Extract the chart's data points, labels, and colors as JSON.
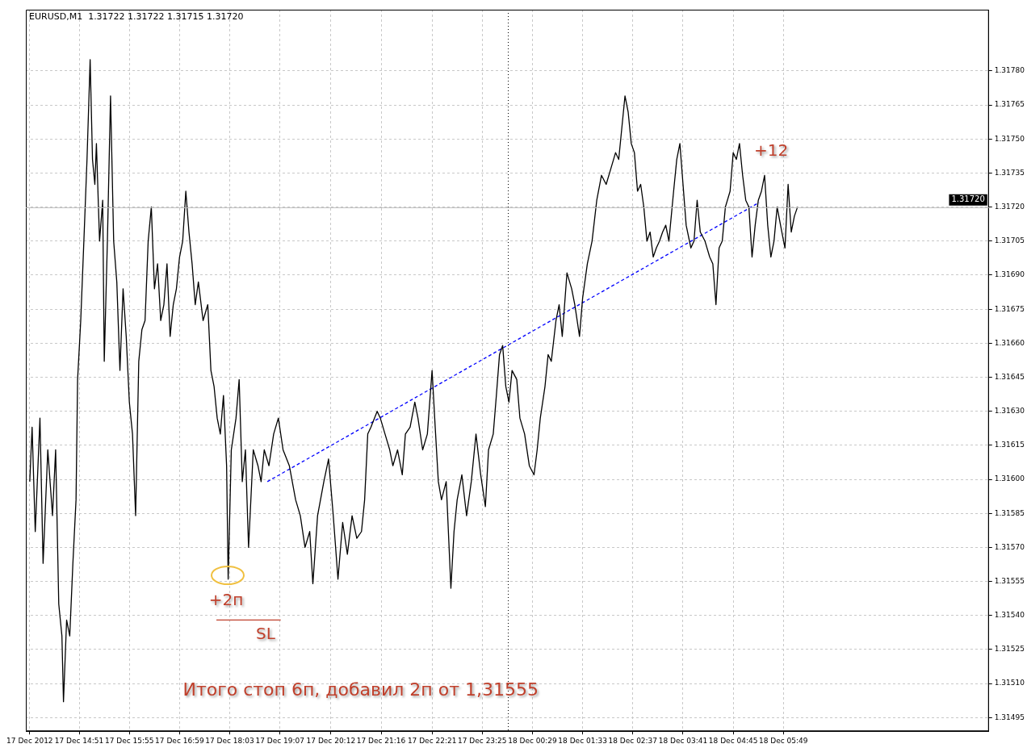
{
  "chart_data": {
    "type": "line",
    "title": "EURUSD,M1  1.31722 1.31722 1.31715 1.31720",
    "xlim": [
      "2012-12-17T13:43",
      "2012-12-18T10:11"
    ],
    "xticks": [
      {
        "value": "2012-12-17T13:48",
        "label": "17 Dec 2012"
      },
      {
        "value": "2012-12-17T14:51",
        "label": "17 Dec 14:51"
      },
      {
        "value": "2012-12-17T15:55",
        "label": "17 Dec 15:55"
      },
      {
        "value": "2012-12-17T16:59",
        "label": "17 Dec 16:59"
      },
      {
        "value": "2012-12-17T18:03",
        "label": "17 Dec 18:03"
      },
      {
        "value": "2012-12-17T19:07",
        "label": "17 Dec 19:07"
      },
      {
        "value": "2012-12-17T20:12",
        "label": "17 Dec 20:12"
      },
      {
        "value": "2012-12-17T21:16",
        "label": "17 Dec 21:16"
      },
      {
        "value": "2012-12-17T22:21",
        "label": "17 Dec 22:21"
      },
      {
        "value": "2012-12-17T23:25",
        "label": "17 Dec 23:25"
      },
      {
        "value": "2012-12-18T00:29",
        "label": "18 Dec 00:29"
      },
      {
        "value": "2012-12-18T01:33",
        "label": "18 Dec 01:33"
      },
      {
        "value": "2012-12-18T02:37",
        "label": "18 Dec 02:37"
      },
      {
        "value": "2012-12-18T03:41",
        "label": "18 Dec 03:41"
      },
      {
        "value": "2012-12-18T04:45",
        "label": "18 Dec 04:45"
      },
      {
        "value": "2012-12-18T05:49",
        "label": "18 Dec 05:49"
      }
    ],
    "ylim": [
      1.31489,
      1.31807
    ],
    "yticks": [
      1.31495,
      {
        "value": 1.3151,
        "label": "1.31510"
      },
      1.31525,
      {
        "value": 1.3154,
        "label": "1.31540"
      },
      1.31555,
      {
        "value": 1.3157,
        "label": "1.31570"
      },
      1.31585,
      {
        "value": 1.316,
        "label": "1.31600"
      },
      1.31615,
      {
        "value": 1.3163,
        "label": "1.31630"
      },
      1.31645,
      {
        "value": 1.3166,
        "label": "1.31660"
      },
      1.31675,
      {
        "value": 1.3169,
        "label": "1.31690"
      },
      1.31705,
      {
        "value": 1.3172,
        "label": "1.31720"
      },
      1.31735,
      {
        "value": 1.3175,
        "label": "1.31750"
      },
      1.31765,
      {
        "value": 1.3178,
        "label": "1.31780"
      }
    ],
    "grid": true,
    "legend": false,
    "marker": "none",
    "series": [
      {
        "color": "#000000",
        "line_style": "solid",
        "x": [
          "2012-12-17T13:48",
          "2012-12-17T13:51",
          "2012-12-17T13:55",
          "2012-12-17T14:01",
          "2012-12-17T14:05",
          "2012-12-17T14:11",
          "2012-12-17T14:17",
          "2012-12-17T14:21",
          "2012-12-17T14:25",
          "2012-12-17T14:29",
          "2012-12-17T14:31",
          "2012-12-17T14:35",
          "2012-12-17T14:39",
          "2012-12-17T14:43",
          "2012-12-17T14:47",
          "2012-12-17T14:49",
          "2012-12-17T14:53",
          "2012-12-17T14:57",
          "2012-12-17T15:01",
          "2012-12-17T15:05",
          "2012-12-17T15:08",
          "2012-12-17T15:11",
          "2012-12-17T15:13",
          "2012-12-17T15:17",
          "2012-12-17T15:21",
          "2012-12-17T15:23",
          "2012-12-17T15:27",
          "2012-12-17T15:31",
          "2012-12-17T15:35",
          "2012-12-17T15:39",
          "2012-12-17T15:43",
          "2012-12-17T15:47",
          "2012-12-17T15:51",
          "2012-12-17T15:55",
          "2012-12-17T15:59",
          "2012-12-17T16:03",
          "2012-12-17T16:07",
          "2012-12-17T16:11",
          "2012-12-17T16:15",
          "2012-12-17T16:19",
          "2012-12-17T16:23",
          "2012-12-17T16:27",
          "2012-12-17T16:31",
          "2012-12-17T16:35",
          "2012-12-17T16:39",
          "2012-12-17T16:43",
          "2012-12-17T16:47",
          "2012-12-17T16:51",
          "2012-12-17T16:55",
          "2012-12-17T16:59",
          "2012-12-17T17:03",
          "2012-12-17T17:07",
          "2012-12-17T17:11",
          "2012-12-17T17:15",
          "2012-12-17T17:19",
          "2012-12-17T17:23",
          "2012-12-17T17:29",
          "2012-12-17T17:35",
          "2012-12-17T17:39",
          "2012-12-17T17:43",
          "2012-12-17T17:47",
          "2012-12-17T17:51",
          "2012-12-17T17:55",
          "2012-12-17T17:59",
          "2012-12-17T18:01",
          "2012-12-17T18:05",
          "2012-12-17T18:11",
          "2012-12-17T18:15",
          "2012-12-17T18:19",
          "2012-12-17T18:23",
          "2012-12-17T18:27",
          "2012-12-17T18:33",
          "2012-12-17T18:39",
          "2012-12-17T18:43",
          "2012-12-17T18:47",
          "2012-12-17T18:53",
          "2012-12-17T18:59",
          "2012-12-17T19:05",
          "2012-12-17T19:11",
          "2012-12-17T19:19",
          "2012-12-17T19:27",
          "2012-12-17T19:33",
          "2012-12-17T19:39",
          "2012-12-17T19:45",
          "2012-12-17T19:49",
          "2012-12-17T19:55",
          "2012-12-17T20:03",
          "2012-12-17T20:09",
          "2012-12-17T20:15",
          "2012-12-17T20:21",
          "2012-12-17T20:27",
          "2012-12-17T20:33",
          "2012-12-17T20:39",
          "2012-12-17T20:45",
          "2012-12-17T20:51",
          "2012-12-17T20:55",
          "2012-12-17T20:59",
          "2012-12-17T21:03",
          "2012-12-17T21:11",
          "2012-12-17T21:15",
          "2012-12-17T21:21",
          "2012-12-17T21:27",
          "2012-12-17T21:31",
          "2012-12-17T21:37",
          "2012-12-17T21:43",
          "2012-12-17T21:47",
          "2012-12-17T21:53",
          "2012-12-17T21:59",
          "2012-12-17T22:03",
          "2012-12-17T22:09",
          "2012-12-17T22:15",
          "2012-12-17T22:21",
          "2012-12-17T22:25",
          "2012-12-17T22:29",
          "2012-12-17T22:33",
          "2012-12-17T22:39",
          "2012-12-17T22:45",
          "2012-12-17T22:49",
          "2012-12-17T22:53",
          "2012-12-17T22:59",
          "2012-12-17T23:05",
          "2012-12-17T23:11",
          "2012-12-17T23:17",
          "2012-12-17T23:23",
          "2012-12-17T23:29",
          "2012-12-17T23:33",
          "2012-12-17T23:39",
          "2012-12-17T23:43",
          "2012-12-17T23:47",
          "2012-12-17T23:51",
          "2012-12-17T23:55",
          "2012-12-17T23:59",
          "2012-12-18T00:03",
          "2012-12-18T00:09",
          "2012-12-18T00:13",
          "2012-12-18T00:19",
          "2012-12-18T00:25",
          "2012-12-18T00:31",
          "2012-12-18T00:35",
          "2012-12-18T00:39",
          "2012-12-18T00:45",
          "2012-12-18T00:49",
          "2012-12-18T00:53",
          "2012-12-18T00:59",
          "2012-12-18T01:03",
          "2012-12-18T01:07",
          "2012-12-18T01:13",
          "2012-12-18T01:19",
          "2012-12-18T01:23",
          "2012-12-18T01:29",
          "2012-12-18T01:33",
          "2012-12-18T01:39",
          "2012-12-18T01:45",
          "2012-12-18T01:51",
          "2012-12-18T01:57",
          "2012-12-18T02:03",
          "2012-12-18T02:09",
          "2012-12-18T02:15",
          "2012-12-18T02:19",
          "2012-12-18T02:23",
          "2012-12-18T02:27",
          "2012-12-18T02:31",
          "2012-12-18T02:35",
          "2012-12-18T02:39",
          "2012-12-18T02:43",
          "2012-12-18T02:47",
          "2012-12-18T02:51",
          "2012-12-18T02:55",
          "2012-12-18T02:59",
          "2012-12-18T03:03",
          "2012-12-18T03:07",
          "2012-12-18T03:11",
          "2012-12-18T03:15",
          "2012-12-18T03:19",
          "2012-12-18T03:23",
          "2012-12-18T03:29",
          "2012-12-18T03:33",
          "2012-12-18T03:37",
          "2012-12-18T03:41",
          "2012-12-18T03:45",
          "2012-12-18T03:51",
          "2012-12-18T03:55",
          "2012-12-18T03:59",
          "2012-12-18T04:03",
          "2012-12-18T04:09",
          "2012-12-18T04:15",
          "2012-12-18T04:19",
          "2012-12-18T04:23",
          "2012-12-18T04:27",
          "2012-12-18T04:31",
          "2012-12-18T04:35",
          "2012-12-18T04:41",
          "2012-12-18T04:45",
          "2012-12-18T04:49",
          "2012-12-18T04:53",
          "2012-12-18T04:57",
          "2012-12-18T05:01",
          "2012-12-18T05:05",
          "2012-12-18T05:09",
          "2012-12-18T05:13",
          "2012-12-18T05:17",
          "2012-12-18T05:21",
          "2012-12-18T05:25",
          "2012-12-18T05:29",
          "2012-12-18T05:33",
          "2012-12-18T05:37",
          "2012-12-18T05:41",
          "2012-12-18T05:47",
          "2012-12-18T05:51",
          "2012-12-18T05:55",
          "2012-12-18T05:59",
          "2012-12-18T06:03",
          "2012-12-18T06:07"
        ],
        "values": [
          1.31599,
          1.31623,
          1.31577,
          1.31627,
          1.31563,
          1.31613,
          1.31584,
          1.31613,
          1.31545,
          1.31531,
          1.31502,
          1.31538,
          1.31531,
          1.31563,
          1.31591,
          1.31644,
          1.3167,
          1.31705,
          1.31741,
          1.31785,
          1.31741,
          1.3173,
          1.31748,
          1.31705,
          1.31723,
          1.31652,
          1.31705,
          1.31769,
          1.31705,
          1.31687,
          1.31648,
          1.31684,
          1.31663,
          1.31634,
          1.3162,
          1.31584,
          1.31652,
          1.31666,
          1.3167,
          1.31705,
          1.3172,
          1.31684,
          1.31695,
          1.3167,
          1.31677,
          1.31695,
          1.31663,
          1.31677,
          1.31684,
          1.31698,
          1.31705,
          1.31727,
          1.31709,
          1.31695,
          1.31677,
          1.31687,
          1.3167,
          1.31677,
          1.31648,
          1.31641,
          1.31627,
          1.3162,
          1.31637,
          1.31606,
          1.31556,
          1.31613,
          1.31627,
          1.31644,
          1.31599,
          1.31613,
          1.3157,
          1.31613,
          1.31606,
          1.31599,
          1.31613,
          1.31606,
          1.3162,
          1.31627,
          1.31613,
          1.31606,
          1.31591,
          1.31584,
          1.3157,
          1.31577,
          1.31554,
          1.31584,
          1.31599,
          1.31609,
          1.31584,
          1.31556,
          1.31581,
          1.31567,
          1.31584,
          1.31574,
          1.31577,
          1.31591,
          1.3162,
          1.31623,
          1.3163,
          1.31627,
          1.3162,
          1.31613,
          1.31606,
          1.31613,
          1.31602,
          1.3162,
          1.31623,
          1.31634,
          1.31627,
          1.31613,
          1.3162,
          1.31648,
          1.31623,
          1.31599,
          1.31591,
          1.31599,
          1.31552,
          1.31577,
          1.31591,
          1.31602,
          1.31584,
          1.31599,
          1.3162,
          1.31602,
          1.31588,
          1.31613,
          1.3162,
          1.31637,
          1.31655,
          1.31659,
          1.31641,
          1.31634,
          1.31648,
          1.31644,
          1.31627,
          1.3162,
          1.31606,
          1.31602,
          1.31613,
          1.31627,
          1.31641,
          1.31655,
          1.31652,
          1.3167,
          1.31677,
          1.31663,
          1.31691,
          1.31684,
          1.31677,
          1.31663,
          1.3168,
          1.31695,
          1.31705,
          1.31723,
          1.31734,
          1.3173,
          1.31737,
          1.31744,
          1.31741,
          1.31755,
          1.31769,
          1.31762,
          1.31748,
          1.31744,
          1.31727,
          1.3173,
          1.3172,
          1.31705,
          1.31709,
          1.31698,
          1.31702,
          1.31705,
          1.31709,
          1.31712,
          1.31705,
          1.31727,
          1.31741,
          1.31748,
          1.3173,
          1.31712,
          1.31702,
          1.31705,
          1.31723,
          1.31709,
          1.31705,
          1.31698,
          1.31695,
          1.31677,
          1.31702,
          1.31705,
          1.3172,
          1.31727,
          1.31744,
          1.31741,
          1.31748,
          1.31734,
          1.31723,
          1.3172,
          1.31698,
          1.31712,
          1.31723,
          1.31727,
          1.31734,
          1.31712,
          1.31698,
          1.31705,
          1.3172,
          1.31709,
          1.31702,
          1.3173,
          1.31709,
          1.31716,
          1.3172
        ]
      },
      {
        "color": "#0000ff",
        "line_style": "dashed",
        "x": [
          "2012-12-17T18:51",
          "2012-12-18T05:18"
        ],
        "values": [
          1.31599,
          1.31722
        ]
      },
      {
        "color": "#c0402c",
        "line_style": "solid",
        "x": [
          "2012-12-17T17:46",
          "2012-12-17T19:08"
        ],
        "values": [
          1.31538,
          1.31538
        ]
      }
    ],
    "ref_lines": [
      {
        "axis": "y",
        "value": 1.3172,
        "label": "1.31720",
        "color": "#c0c0c0",
        "line_style": "solid"
      },
      {
        "axis": "x",
        "value": "2012-12-17T23:58",
        "color": "#000000",
        "line_style": "dotted"
      }
    ],
    "annotations": [
      "+2п",
      "SL",
      "+12",
      "Итого стоп 6п, добавил 2п от 1,31555"
    ]
  }
}
